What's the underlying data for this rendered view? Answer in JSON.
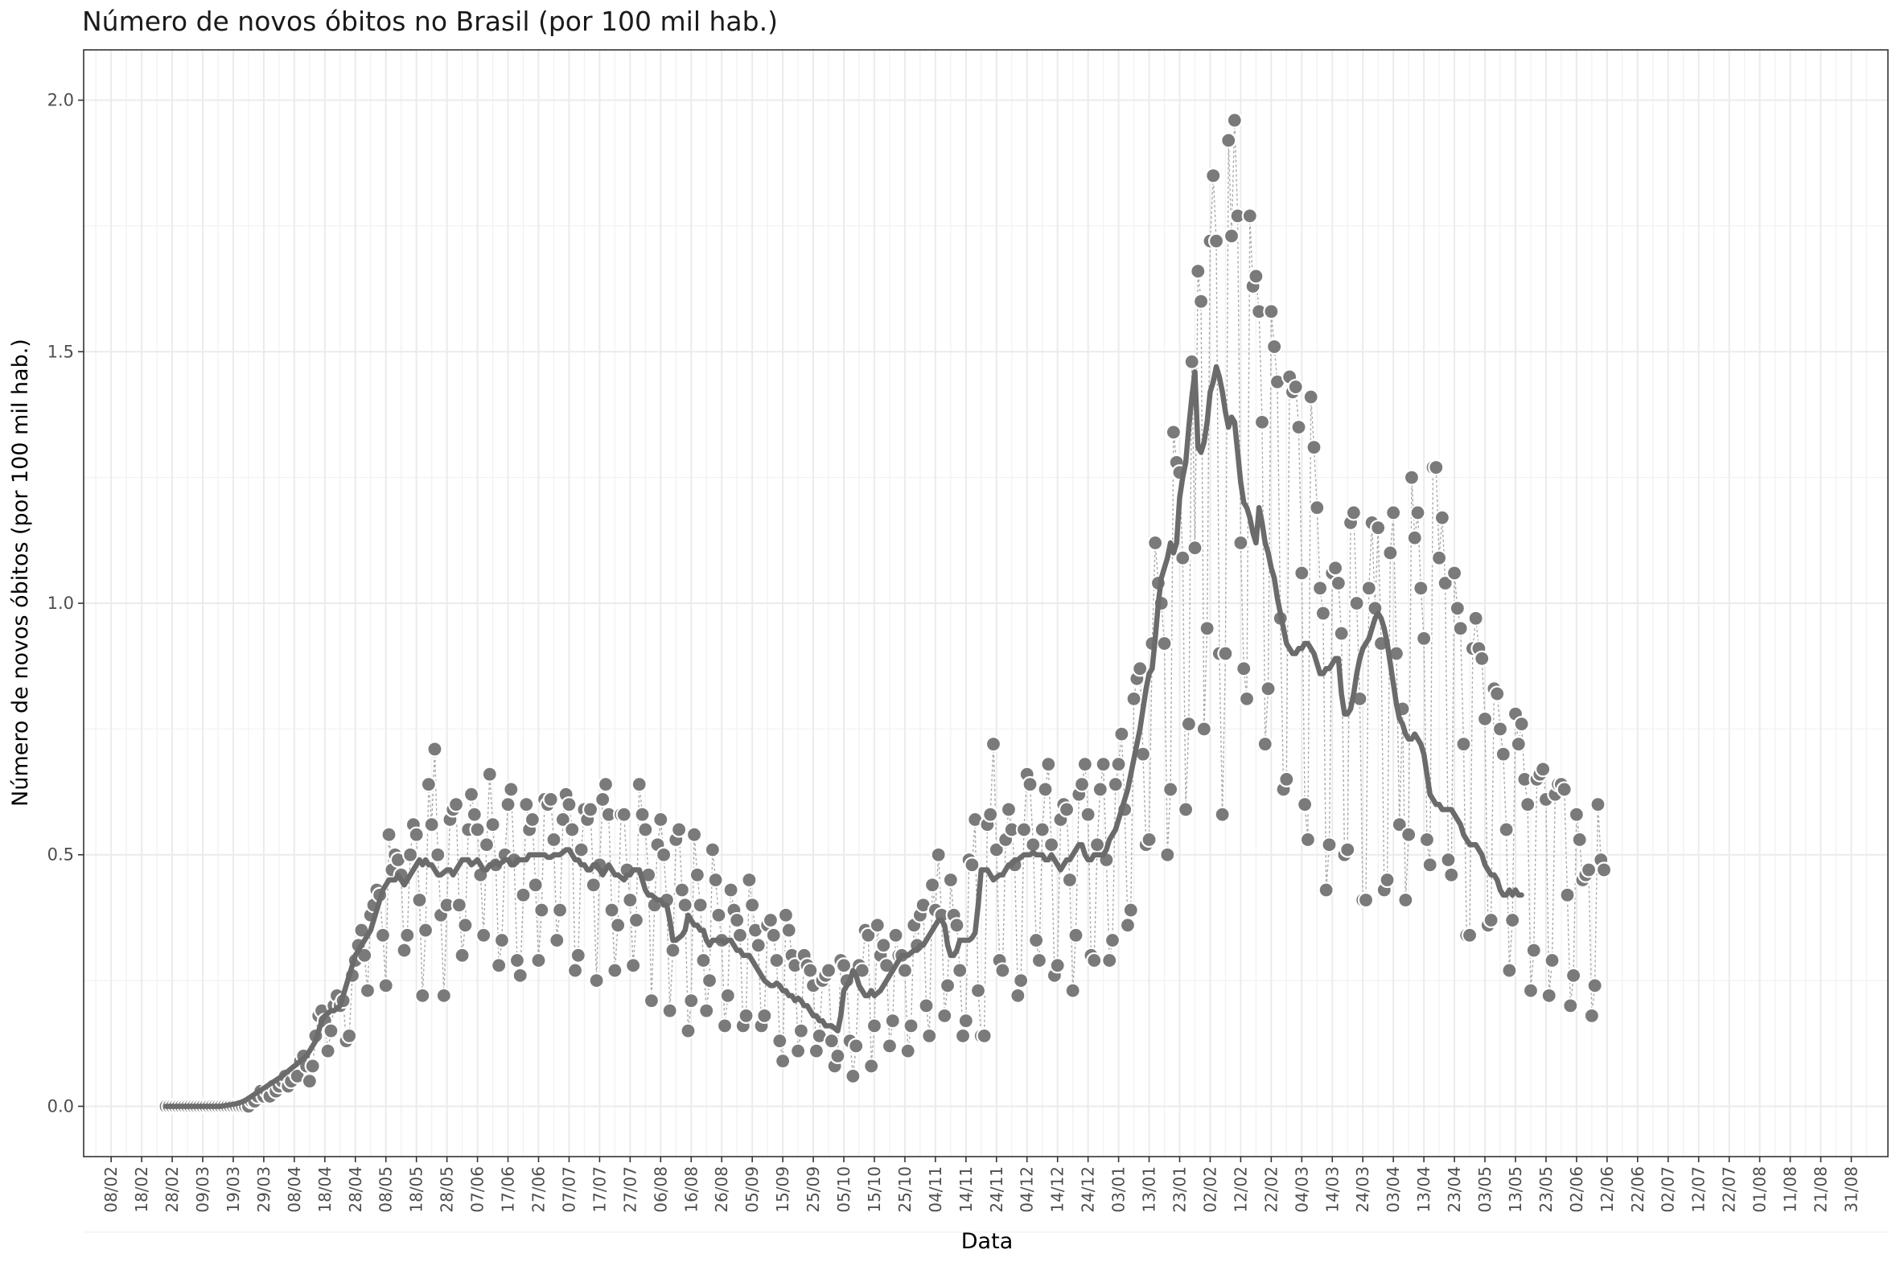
{
  "chart_data": {
    "type": "line",
    "title": "Número de novos óbitos no Brasil (por 100 mil hab.)",
    "xlabel": "Data",
    "ylabel": "Número de novos óbitos (por 100 mil hab.)",
    "ylim": [
      -0.1,
      2.1
    ],
    "yticks": [
      "0.0",
      "0.5",
      "1.0",
      "1.5",
      "2.0"
    ],
    "ytick_values": [
      0,
      0.5,
      1.0,
      1.5,
      2.0
    ],
    "x_domain_dates": [
      "2020-01-30",
      "2021-09-12"
    ],
    "xticks": [
      "08/02",
      "18/02",
      "28/02",
      "09/03",
      "19/03",
      "29/03",
      "08/04",
      "18/04",
      "28/04",
      "08/05",
      "18/05",
      "28/05",
      "07/06",
      "17/06",
      "27/06",
      "07/07",
      "17/07",
      "27/07",
      "06/08",
      "16/08",
      "26/08",
      "05/09",
      "15/09",
      "25/09",
      "05/10",
      "15/10",
      "25/10",
      "04/11",
      "14/11",
      "24/11",
      "04/12",
      "14/12",
      "24/12",
      "03/01",
      "13/01",
      "23/01",
      "02/02",
      "12/02",
      "22/02",
      "04/03",
      "14/03",
      "24/03",
      "03/04",
      "13/04",
      "23/04",
      "03/05",
      "13/05",
      "23/05",
      "02/06",
      "12/06",
      "22/06",
      "02/07",
      "12/07",
      "22/07",
      "01/08",
      "11/08",
      "21/08",
      "31/08"
    ],
    "xtick_dates": [
      "2020-02-08",
      "2020-02-18",
      "2020-02-28",
      "2020-03-09",
      "2020-03-19",
      "2020-03-29",
      "2020-04-08",
      "2020-04-18",
      "2020-04-28",
      "2020-05-08",
      "2020-05-18",
      "2020-05-28",
      "2020-06-07",
      "2020-06-17",
      "2020-06-27",
      "2020-07-07",
      "2020-07-17",
      "2020-07-27",
      "2020-08-06",
      "2020-08-16",
      "2020-08-26",
      "2020-09-05",
      "2020-09-15",
      "2020-09-25",
      "2020-10-05",
      "2020-10-15",
      "2020-10-25",
      "2020-11-04",
      "2020-11-14",
      "2020-11-24",
      "2020-12-04",
      "2020-12-14",
      "2020-12-24",
      "2021-01-03",
      "2021-01-13",
      "2021-01-23",
      "2021-02-02",
      "2021-02-12",
      "2021-02-22",
      "2021-03-04",
      "2021-03-14",
      "2021-03-24",
      "2021-04-03",
      "2021-04-13",
      "2021-04-23",
      "2021-05-03",
      "2021-05-13",
      "2021-05-23",
      "2021-06-02",
      "2021-06-12",
      "2021-06-22",
      "2021-07-02",
      "2021-07-12",
      "2021-07-22",
      "2021-08-01",
      "2021-08-11",
      "2021-08-21",
      "2021-08-31"
    ],
    "grid": true,
    "series": [
      {
        "role": "daily",
        "marker": "point",
        "color": "#7a7a7a",
        "start_date": "2020-02-26",
        "values": [
          0,
          0,
          0,
          0,
          0,
          0,
          0,
          0,
          0,
          0,
          0,
          0,
          0,
          0,
          0,
          0,
          0,
          0,
          0,
          0,
          0,
          0,
          0,
          0,
          0,
          0,
          0,
          0,
          0.01,
          0.01,
          0.02,
          0.03,
          0.02,
          0.03,
          0.02,
          0.04,
          0.03,
          0.04,
          0.05,
          0.06,
          0.04,
          0.05,
          0.07,
          0.06,
          0.09,
          0.1,
          0.08,
          0.05,
          0.08,
          0.14,
          0.18,
          0.19,
          0.17,
          0.11,
          0.15,
          0.2,
          0.22,
          0.2,
          0.21,
          0.13,
          0.14,
          0.26,
          0.29,
          0.32,
          0.35,
          0.3,
          0.23,
          0.38,
          0.4,
          0.43,
          0.42,
          0.34,
          0.24,
          0.54,
          0.47,
          0.5,
          0.49,
          0.46,
          0.31,
          0.34,
          0.5,
          0.56,
          0.54,
          0.41,
          0.22,
          0.35,
          0.64,
          0.56,
          0.71,
          0.5,
          0.38,
          0.22,
          0.4,
          0.57,
          0.59,
          0.6,
          0.4,
          0.3,
          0.36,
          0.55,
          0.62,
          0.58,
          0.55,
          0.46,
          0.34,
          0.52,
          0.66,
          0.56,
          0.48,
          0.28,
          0.33,
          0.5,
          0.6,
          0.63,
          0.49,
          0.29,
          0.26,
          0.42,
          0.6,
          0.55,
          0.57,
          0.44,
          0.29,
          0.39,
          0.61,
          0.6,
          0.61,
          0.53,
          0.33,
          0.39,
          0.57,
          0.62,
          0.6,
          0.55,
          0.27,
          0.3,
          0.51,
          0.59,
          0.57,
          0.59,
          0.44,
          0.25,
          0.48,
          0.61,
          0.64,
          0.58,
          0.39,
          0.27,
          0.36,
          0.58,
          0.58,
          0.47,
          0.41,
          0.28,
          0.37,
          0.64,
          0.58,
          0.55,
          0.46,
          0.21,
          0.4,
          0.52,
          0.57,
          0.5,
          0.41,
          0.19,
          0.31,
          0.53,
          0.55,
          0.43,
          0.4,
          0.15,
          0.21,
          0.54,
          0.46,
          0.4,
          0.29,
          0.19,
          0.25,
          0.51,
          0.45,
          0.38,
          0.33,
          0.16,
          0.22,
          0.43,
          0.39,
          0.37,
          0.34,
          0.16,
          0.18,
          0.45,
          0.4,
          0.35,
          0.32,
          0.16,
          0.18,
          0.36,
          0.37,
          0.34,
          0.29,
          0.13,
          0.09,
          0.38,
          0.35,
          0.3,
          0.28,
          0.11,
          0.15,
          0.3,
          0.28,
          0.27,
          0.24,
          0.11,
          0.14,
          0.25,
          0.26,
          0.27,
          0.13,
          0.08,
          0.1,
          0.29,
          0.28,
          0.25,
          0.13,
          0.06,
          0.12,
          0.28,
          0.27,
          0.35,
          0.34,
          0.08,
          0.16,
          0.36,
          0.3,
          0.32,
          0.28,
          0.12,
          0.17,
          0.34,
          0.3,
          0.3,
          0.27,
          0.11,
          0.16,
          0.36,
          0.32,
          0.38,
          0.4,
          0.2,
          0.14,
          0.44,
          0.39,
          0.5,
          0.38,
          0.18,
          0.24,
          0.45,
          0.38,
          0.36,
          0.27,
          0.14,
          0.17,
          0.49,
          0.48,
          0.57,
          0.23,
          0.14,
          0.14,
          0.56,
          0.58,
          0.72,
          0.51,
          0.29,
          0.27,
          0.53,
          0.59,
          0.55,
          0.48,
          0.22,
          0.25,
          0.55,
          0.66,
          0.64,
          0.52,
          0.33,
          0.29,
          0.55,
          0.63,
          0.68,
          0.52,
          0.26,
          0.28,
          0.57,
          0.6,
          0.59,
          0.45,
          0.23,
          0.34,
          0.62,
          0.64,
          0.68,
          0.58,
          0.3,
          0.29,
          0.52,
          0.63,
          0.68,
          0.49,
          0.29,
          0.33,
          0.64,
          0.68,
          0.74,
          0.59,
          0.36,
          0.39,
          0.81,
          0.85,
          0.87,
          0.7,
          0.52,
          0.53,
          0.92,
          1.12,
          1.04,
          1.0,
          0.92,
          0.5,
          0.63,
          1.34,
          1.28,
          1.26,
          1.09,
          0.59,
          0.76,
          1.48,
          1.11,
          1.66,
          1.6,
          0.75,
          0.95,
          1.72,
          1.85,
          1.72,
          0.9,
          0.58,
          0.9,
          1.92,
          1.73,
          1.96,
          1.77,
          1.12,
          0.87,
          0.81,
          1.77,
          1.63,
          1.65,
          1.58,
          1.36,
          0.72,
          0.83,
          1.58,
          1.51,
          1.44,
          0.97,
          0.63,
          0.65,
          1.45,
          1.42,
          1.43,
          1.35,
          1.06,
          0.6,
          0.53,
          1.41,
          1.31,
          1.19,
          1.03,
          0.98,
          0.43,
          0.52,
          1.06,
          1.07,
          1.04,
          0.94,
          0.5,
          0.51,
          1.16,
          1.18,
          1.0,
          0.81,
          0.41,
          0.41,
          1.03,
          1.16,
          0.99,
          1.15,
          0.92,
          0.43,
          0.45,
          1.1,
          1.18,
          0.9,
          0.56,
          0.79,
          0.41,
          0.54,
          1.25,
          1.13,
          1.18,
          1.03,
          0.93,
          0.53,
          0.48,
          1.27,
          1.27,
          1.09,
          1.17,
          1.04,
          0.49,
          0.46,
          1.06,
          0.99,
          0.95,
          0.72,
          0.34,
          0.34,
          0.91,
          0.97,
          0.91,
          0.89,
          0.77,
          0.36,
          0.37,
          0.83,
          0.82,
          0.75,
          0.7,
          0.55,
          0.27,
          0.37,
          0.78,
          0.72,
          0.76,
          0.65,
          0.6,
          0.23,
          0.31,
          0.65,
          0.66,
          0.67,
          0.61,
          0.22,
          0.29,
          0.62,
          0.64,
          0.64,
          0.63,
          0.42,
          0.2,
          0.26,
          0.58,
          0.53,
          0.45,
          0.46,
          0.47,
          0.18,
          0.24,
          0.6,
          0.49,
          0.47
        ]
      },
      {
        "role": "moving-average",
        "marker": "line",
        "color": "#6b6b6b",
        "start_date": "2020-02-26",
        "values": [
          0,
          0,
          0,
          0,
          0,
          0,
          0,
          0,
          0,
          0,
          0,
          0,
          0,
          0,
          0,
          0,
          0,
          0,
          0,
          0.001,
          0.002,
          0.003,
          0.004,
          0.005,
          0.007,
          0.009,
          0.012,
          0.016,
          0.02,
          0.024,
          0.028,
          0.032,
          0.036,
          0.04,
          0.044,
          0.048,
          0.052,
          0.056,
          0.06,
          0.065,
          0.07,
          0.075,
          0.08,
          0.085,
          0.09,
          0.095,
          0.1,
          0.11,
          0.12,
          0.13,
          0.15,
          0.17,
          0.18,
          0.185,
          0.19,
          0.19,
          0.195,
          0.2,
          0.22,
          0.24,
          0.26,
          0.28,
          0.3,
          0.31,
          0.32,
          0.33,
          0.34,
          0.35,
          0.37,
          0.39,
          0.41,
          0.43,
          0.44,
          0.45,
          0.45,
          0.45,
          0.46,
          0.45,
          0.44,
          0.45,
          0.46,
          0.47,
          0.48,
          0.49,
          0.48,
          0.49,
          0.48,
          0.48,
          0.47,
          0.46,
          0.46,
          0.465,
          0.47,
          0.47,
          0.46,
          0.47,
          0.48,
          0.49,
          0.49,
          0.49,
          0.48,
          0.485,
          0.49,
          0.48,
          0.47,
          0.47,
          0.48,
          0.48,
          0.485,
          0.48,
          0.485,
          0.49,
          0.49,
          0.48,
          0.48,
          0.49,
          0.49,
          0.49,
          0.49,
          0.5,
          0.5,
          0.5,
          0.5,
          0.5,
          0.5,
          0.495,
          0.495,
          0.5,
          0.5,
          0.5,
          0.505,
          0.51,
          0.51,
          0.5,
          0.49,
          0.49,
          0.48,
          0.48,
          0.47,
          0.47,
          0.48,
          0.48,
          0.47,
          0.46,
          0.47,
          0.48,
          0.47,
          0.46,
          0.46,
          0.455,
          0.45,
          0.46,
          0.46,
          0.47,
          0.47,
          0.47,
          0.45,
          0.43,
          0.42,
          0.42,
          0.415,
          0.41,
          0.41,
          0.4,
          0.4,
          0.37,
          0.33,
          0.33,
          0.335,
          0.34,
          0.35,
          0.38,
          0.37,
          0.36,
          0.36,
          0.35,
          0.35,
          0.33,
          0.32,
          0.33,
          0.33,
          0.33,
          0.33,
          0.325,
          0.33,
          0.33,
          0.32,
          0.31,
          0.31,
          0.3,
          0.3,
          0.3,
          0.29,
          0.28,
          0.27,
          0.26,
          0.25,
          0.245,
          0.24,
          0.24,
          0.245,
          0.24,
          0.23,
          0.23,
          0.22,
          0.22,
          0.21,
          0.215,
          0.21,
          0.2,
          0.2,
          0.19,
          0.18,
          0.18,
          0.17,
          0.17,
          0.16,
          0.16,
          0.16,
          0.155,
          0.15,
          0.18,
          0.23,
          0.24,
          0.25,
          0.27,
          0.26,
          0.24,
          0.23,
          0.22,
          0.22,
          0.23,
          0.22,
          0.225,
          0.23,
          0.24,
          0.25,
          0.26,
          0.27,
          0.28,
          0.29,
          0.3,
          0.3,
          0.3,
          0.305,
          0.31,
          0.31,
          0.32,
          0.32,
          0.33,
          0.34,
          0.35,
          0.36,
          0.37,
          0.37,
          0.36,
          0.32,
          0.3,
          0.3,
          0.31,
          0.33,
          0.33,
          0.33,
          0.33,
          0.335,
          0.345,
          0.4,
          0.47,
          0.47,
          0.47,
          0.46,
          0.45,
          0.455,
          0.46,
          0.46,
          0.47,
          0.48,
          0.48,
          0.49,
          0.49,
          0.495,
          0.5,
          0.5,
          0.5,
          0.505,
          0.5,
          0.5,
          0.5,
          0.49,
          0.49,
          0.5,
          0.49,
          0.48,
          0.47,
          0.48,
          0.49,
          0.49,
          0.5,
          0.51,
          0.52,
          0.52,
          0.5,
          0.49,
          0.49,
          0.5,
          0.5,
          0.5,
          0.5,
          0.51,
          0.53,
          0.54,
          0.55,
          0.57,
          0.59,
          0.61,
          0.63,
          0.66,
          0.69,
          0.72,
          0.75,
          0.79,
          0.83,
          0.86,
          0.87,
          0.93,
          1.0,
          1.05,
          1.07,
          1.09,
          1.12,
          1.1,
          1.12,
          1.21,
          1.25,
          1.28,
          1.35,
          1.41,
          1.46,
          1.31,
          1.3,
          1.32,
          1.36,
          1.42,
          1.44,
          1.47,
          1.45,
          1.42,
          1.38,
          1.35,
          1.37,
          1.36,
          1.3,
          1.24,
          1.2,
          1.19,
          1.17,
          1.14,
          1.12,
          1.19,
          1.16,
          1.12,
          1.1,
          1.07,
          1.05,
          1.01,
          0.98,
          0.95,
          0.92,
          0.91,
          0.9,
          0.9,
          0.91,
          0.91,
          0.92,
          0.92,
          0.91,
          0.9,
          0.88,
          0.86,
          0.86,
          0.87,
          0.87,
          0.88,
          0.89,
          0.89,
          0.82,
          0.78,
          0.78,
          0.79,
          0.82,
          0.86,
          0.89,
          0.91,
          0.92,
          0.93,
          0.95,
          0.97,
          0.98,
          0.97,
          0.95,
          0.92,
          0.88,
          0.84,
          0.8,
          0.77,
          0.76,
          0.74,
          0.73,
          0.73,
          0.74,
          0.73,
          0.72,
          0.7,
          0.66,
          0.62,
          0.61,
          0.6,
          0.6,
          0.59,
          0.59,
          0.59,
          0.59,
          0.58,
          0.57,
          0.56,
          0.54,
          0.53,
          0.52,
          0.52,
          0.52,
          0.51,
          0.5,
          0.48,
          0.47,
          0.46,
          0.46,
          0.45,
          0.43,
          0.42,
          0.42,
          0.43,
          0.42,
          0.43,
          0.42,
          0.42
        ]
      }
    ]
  }
}
